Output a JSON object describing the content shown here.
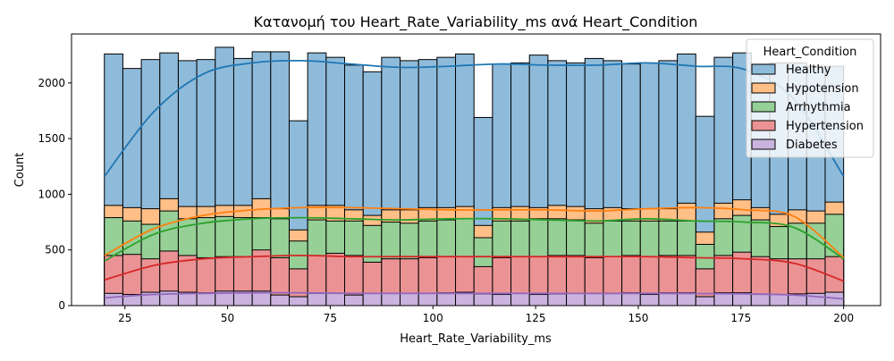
{
  "chart_data": {
    "type": "bar",
    "stacked": true,
    "title": "Κατανομή του Heart_Rate_Variability_ms ανά Heart_Condition",
    "xlabel": "Heart_Rate_Variability_ms",
    "ylabel": "Count",
    "xlim": [
      12,
      209
    ],
    "ylim": [
      0,
      2440
    ],
    "x_ticks": [
      25,
      50,
      75,
      100,
      125,
      150,
      175,
      200
    ],
    "y_ticks": [
      0,
      500,
      1000,
      1500,
      2000
    ],
    "grid": false,
    "legend": {
      "title": "Heart_Condition",
      "placement": "top-right"
    },
    "bins": {
      "start": 20,
      "end": 200,
      "count": 40
    },
    "kde": true,
    "stack_totals": {
      "Diabetes": [
        110,
        100,
        120,
        130,
        120,
        115,
        130,
        130,
        130,
        95,
        80,
        110,
        110,
        95,
        110,
        110,
        110,
        110,
        115,
        120,
        105,
        100,
        110,
        100,
        105,
        110,
        110,
        110,
        115,
        100,
        115,
        115,
        80,
        115,
        115,
        100,
        100,
        105,
        110,
        120
      ],
      "Hypertension": [
        450,
        460,
        420,
        490,
        450,
        430,
        440,
        440,
        500,
        430,
        330,
        450,
        470,
        450,
        390,
        420,
        420,
        430,
        440,
        440,
        350,
        430,
        440,
        440,
        450,
        450,
        430,
        440,
        450,
        440,
        450,
        450,
        330,
        450,
        480,
        440,
        420,
        420,
        420,
        440
      ],
      "Arrhythmia": [
        790,
        760,
        730,
        850,
        780,
        790,
        800,
        790,
        790,
        780,
        580,
        770,
        760,
        760,
        720,
        750,
        740,
        760,
        770,
        780,
        610,
        760,
        760,
        780,
        780,
        770,
        740,
        760,
        760,
        760,
        760,
        760,
        550,
        780,
        810,
        770,
        710,
        740,
        740,
        820
      ],
      "Hypotension": [
        900,
        880,
        870,
        960,
        890,
        890,
        900,
        900,
        960,
        870,
        680,
        900,
        900,
        860,
        810,
        860,
        860,
        880,
        880,
        890,
        720,
        880,
        890,
        880,
        900,
        890,
        870,
        880,
        870,
        870,
        870,
        920,
        660,
        920,
        950,
        880,
        820,
        860,
        850,
        930
      ],
      "Healthy": [
        2260,
        2130,
        2210,
        2270,
        2200,
        2210,
        2320,
        2220,
        2280,
        2280,
        1660,
        2270,
        2230,
        2160,
        2100,
        2230,
        2200,
        2210,
        2230,
        2260,
        1690,
        2170,
        2180,
        2250,
        2200,
        2180,
        2220,
        2200,
        2170,
        2180,
        2200,
        2260,
        1700,
        2230,
        2270,
        2170,
        2180,
        2180,
        2150,
        2150
      ]
    },
    "kde_curves": {
      "Healthy": [
        1160,
        1740,
        2080,
        2180,
        2200,
        2170,
        2140,
        2150,
        2170,
        2160,
        2160,
        2180,
        2150,
        2120,
        1850,
        1160
      ],
      "Hypotension": [
        450,
        690,
        810,
        860,
        880,
        880,
        870,
        860,
        860,
        860,
        850,
        870,
        880,
        860,
        800,
        430
      ],
      "Arrhythmia": [
        400,
        640,
        740,
        780,
        790,
        780,
        770,
        780,
        780,
        770,
        760,
        780,
        760,
        750,
        700,
        420
      ],
      "Hypertension": [
        230,
        360,
        420,
        440,
        450,
        440,
        440,
        440,
        440,
        440,
        440,
        440,
        430,
        420,
        380,
        220
      ],
      "Diabetes": [
        70,
        100,
        110,
        115,
        115,
        110,
        110,
        110,
        110,
        110,
        108,
        110,
        108,
        105,
        95,
        60
      ]
    },
    "series": [
      {
        "name": "Healthy",
        "color": "#1f77b4"
      },
      {
        "name": "Hypotension",
        "color": "#ff7f0e"
      },
      {
        "name": "Arrhythmia",
        "color": "#2ca02c"
      },
      {
        "name": "Hypertension",
        "color": "#d62728"
      },
      {
        "name": "Diabetes",
        "color": "#9467bd"
      }
    ]
  }
}
